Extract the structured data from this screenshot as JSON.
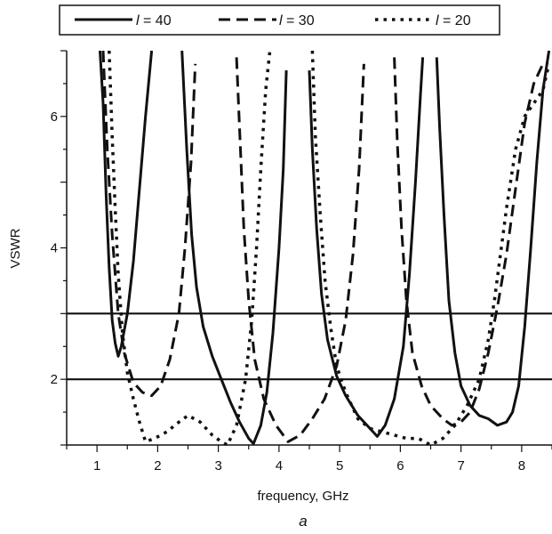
{
  "chart_data": {
    "type": "line",
    "title": "",
    "xlabel": "frequency, GHz",
    "ylabel": "VSWR",
    "caption": "a",
    "xlim": [
      0.5,
      8.5
    ],
    "ylim": [
      1,
      7
    ],
    "x_ticks": [
      1,
      2,
      3,
      4,
      5,
      6,
      7,
      8
    ],
    "y_ticks": [
      2,
      4,
      6
    ],
    "grid": false,
    "legend_position": "top",
    "reference_lines": [
      2,
      3
    ],
    "series": [
      {
        "name": "l = 40",
        "legend_var": "l",
        "legend_eq": " = 40",
        "style": "solid",
        "segments": [
          [
            [
              1.05,
              7.0
            ],
            [
              1.1,
              6.2
            ],
            [
              1.15,
              4.8
            ],
            [
              1.2,
              3.7
            ],
            [
              1.25,
              2.9
            ],
            [
              1.3,
              2.55
            ],
            [
              1.35,
              2.35
            ],
            [
              1.4,
              2.5
            ],
            [
              1.5,
              3.0
            ],
            [
              1.6,
              3.8
            ],
            [
              1.7,
              4.9
            ],
            [
              1.8,
              6.0
            ],
            [
              1.9,
              7.0
            ]
          ],
          [
            [
              2.4,
              7.0
            ],
            [
              2.48,
              5.5
            ],
            [
              2.56,
              4.2
            ],
            [
              2.64,
              3.4
            ],
            [
              2.75,
              2.8
            ],
            [
              2.9,
              2.35
            ],
            [
              3.05,
              2.0
            ],
            [
              3.2,
              1.65
            ],
            [
              3.35,
              1.35
            ],
            [
              3.5,
              1.1
            ],
            [
              3.58,
              1.02
            ],
            [
              3.7,
              1.3
            ],
            [
              3.8,
              1.8
            ],
            [
              3.9,
              2.7
            ],
            [
              4.0,
              4.0
            ],
            [
              4.07,
              5.2
            ],
            [
              4.12,
              6.7
            ]
          ],
          [
            [
              4.5,
              6.7
            ],
            [
              4.55,
              5.5
            ],
            [
              4.62,
              4.3
            ],
            [
              4.7,
              3.3
            ],
            [
              4.8,
              2.6
            ],
            [
              4.95,
              2.05
            ],
            [
              5.1,
              1.75
            ],
            [
              5.3,
              1.45
            ],
            [
              5.5,
              1.25
            ],
            [
              5.62,
              1.13
            ],
            [
              5.75,
              1.3
            ],
            [
              5.9,
              1.7
            ],
            [
              6.05,
              2.5
            ],
            [
              6.15,
              3.6
            ],
            [
              6.25,
              5.0
            ],
            [
              6.33,
              6.3
            ],
            [
              6.37,
              6.9
            ]
          ],
          [
            [
              6.6,
              6.9
            ],
            [
              6.65,
              5.8
            ],
            [
              6.72,
              4.5
            ],
            [
              6.8,
              3.2
            ],
            [
              6.9,
              2.4
            ],
            [
              7.0,
              1.9
            ],
            [
              7.15,
              1.6
            ],
            [
              7.3,
              1.45
            ],
            [
              7.45,
              1.4
            ],
            [
              7.6,
              1.3
            ],
            [
              7.75,
              1.35
            ],
            [
              7.85,
              1.5
            ],
            [
              7.95,
              1.9
            ],
            [
              8.05,
              2.8
            ],
            [
              8.15,
              4.0
            ],
            [
              8.25,
              5.3
            ],
            [
              8.35,
              6.4
            ],
            [
              8.45,
              7.0
            ]
          ]
        ]
      },
      {
        "name": "l = 30",
        "legend_var": "l",
        "legend_eq": " = 30",
        "style": "dashed",
        "segments": [
          [
            [
              1.1,
              7.0
            ],
            [
              1.17,
              5.5
            ],
            [
              1.25,
              4.2
            ],
            [
              1.35,
              3.0
            ],
            [
              1.45,
              2.4
            ],
            [
              1.6,
              1.95
            ],
            [
              1.75,
              1.8
            ],
            [
              1.9,
              1.75
            ],
            [
              2.05,
              1.9
            ],
            [
              2.2,
              2.3
            ],
            [
              2.35,
              3.0
            ],
            [
              2.45,
              4.0
            ],
            [
              2.55,
              5.3
            ],
            [
              2.62,
              6.8
            ]
          ],
          [
            [
              3.3,
              6.9
            ],
            [
              3.36,
              5.6
            ],
            [
              3.42,
              4.3
            ],
            [
              3.5,
              3.2
            ],
            [
              3.6,
              2.3
            ],
            [
              3.75,
              1.7
            ],
            [
              3.95,
              1.3
            ],
            [
              4.15,
              1.05
            ],
            [
              4.35,
              1.15
            ],
            [
              4.55,
              1.4
            ],
            [
              4.75,
              1.7
            ],
            [
              4.95,
              2.2
            ],
            [
              5.1,
              2.9
            ],
            [
              5.22,
              3.9
            ],
            [
              5.32,
              5.2
            ],
            [
              5.4,
              6.8
            ]
          ],
          [
            [
              5.9,
              6.9
            ],
            [
              5.95,
              5.6
            ],
            [
              6.02,
              4.3
            ],
            [
              6.1,
              3.2
            ],
            [
              6.2,
              2.4
            ],
            [
              6.35,
              1.9
            ],
            [
              6.5,
              1.6
            ],
            [
              6.7,
              1.4
            ],
            [
              6.85,
              1.3
            ],
            [
              7.0,
              1.35
            ],
            [
              7.15,
              1.5
            ],
            [
              7.3,
              1.85
            ],
            [
              7.45,
              2.4
            ],
            [
              7.6,
              3.1
            ],
            [
              7.75,
              3.9
            ],
            [
              7.9,
              4.9
            ],
            [
              8.05,
              5.9
            ],
            [
              8.2,
              6.5
            ],
            [
              8.35,
              6.8
            ]
          ]
        ]
      },
      {
        "name": "l = 20",
        "legend_var": "l",
        "legend_eq": " = 20",
        "style": "dotted",
        "segments": [
          [
            [
              1.2,
              7.0
            ],
            [
              1.25,
              5.7
            ],
            [
              1.3,
              4.6
            ],
            [
              1.35,
              3.6
            ],
            [
              1.42,
              2.7
            ],
            [
              1.5,
              2.1
            ],
            [
              1.6,
              1.7
            ],
            [
              1.7,
              1.35
            ],
            [
              1.8,
              1.05
            ],
            [
              1.95,
              1.1
            ],
            [
              2.15,
              1.2
            ],
            [
              2.35,
              1.35
            ],
            [
              2.5,
              1.45
            ],
            [
              2.7,
              1.35
            ],
            [
              2.9,
              1.15
            ],
            [
              3.05,
              1.05
            ],
            [
              3.15,
              1.0
            ],
            [
              3.3,
              1.3
            ],
            [
              3.45,
              2.0
            ],
            [
              3.55,
              2.9
            ],
            [
              3.63,
              4.0
            ],
            [
              3.7,
              5.2
            ],
            [
              3.78,
              6.4
            ],
            [
              3.85,
              7.0
            ]
          ],
          [
            [
              4.55,
              7.0
            ],
            [
              4.6,
              5.7
            ],
            [
              4.68,
              4.5
            ],
            [
              4.76,
              3.5
            ],
            [
              4.85,
              2.8
            ],
            [
              4.95,
              2.2
            ],
            [
              5.1,
              1.8
            ],
            [
              5.3,
              1.4
            ],
            [
              5.5,
              1.25
            ],
            [
              5.7,
              1.2
            ],
            [
              5.9,
              1.15
            ],
            [
              6.1,
              1.1
            ],
            [
              6.3,
              1.1
            ],
            [
              6.5,
              1.0
            ],
            [
              6.7,
              1.1
            ],
            [
              6.9,
              1.3
            ],
            [
              7.1,
              1.6
            ],
            [
              7.3,
              2.0
            ],
            [
              7.45,
              2.6
            ],
            [
              7.55,
              3.2
            ],
            [
              7.65,
              3.9
            ],
            [
              7.75,
              4.6
            ],
            [
              7.9,
              5.5
            ],
            [
              8.05,
              6.0
            ],
            [
              8.2,
              6.2
            ],
            [
              8.35,
              6.4
            ],
            [
              8.45,
              6.8
            ]
          ]
        ]
      }
    ]
  }
}
